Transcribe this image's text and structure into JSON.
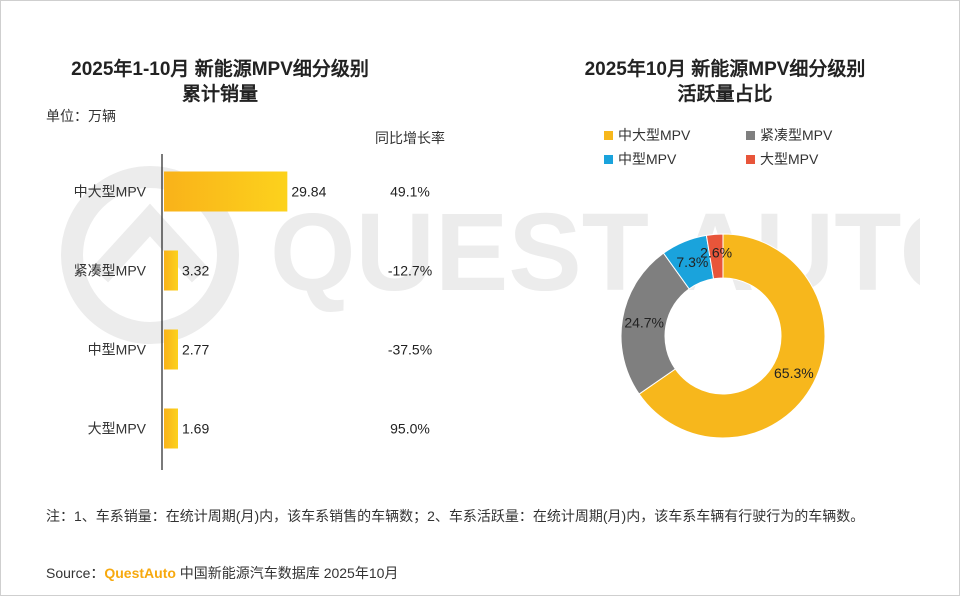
{
  "left_title_line1": "2025年1-10月 新能源MPV细分级别",
  "left_title_line2": "累计销量",
  "right_title_line1": "2025年10月 新能源MPV细分级别",
  "right_title_line2": "活跃量占比",
  "unit_label": "单位：万辆",
  "yoy_header": "同比增长率",
  "watermark_text": "QUEST AUTO",
  "note": "注：1、车系销量：在统计周期(月)内，该车系销售的车辆数；2、车系活跃量：在统计周期(月)内，该车系车辆有行驶行为的车辆数。",
  "source_prefix": "Source：",
  "source_brand": "QuestAuto",
  "source_suffix": " 中国新能源汽车数据库 2025年10月",
  "colors": {
    "bar_gold": "#f9c21a",
    "gold": "#f7b71c",
    "gray": "#7f7f7f",
    "blue": "#1aa3dc",
    "red": "#e8553a",
    "brand": "#f7a90e"
  },
  "chart_data": [
    {
      "type": "bar",
      "orientation": "horizontal",
      "categories": [
        "中大型MPV",
        "紧凑型MPV",
        "中型MPV",
        "大型MPV"
      ],
      "values": [
        29.84,
        3.32,
        2.77,
        1.69
      ],
      "value_labels": [
        "29.84",
        "3.32",
        "2.77",
        "1.69"
      ],
      "yoy_growth": [
        "49.1%",
        "-12.7%",
        "-37.5%",
        "95.0%"
      ],
      "unit": "万辆",
      "xlim": [
        0,
        30
      ]
    },
    {
      "type": "pie",
      "style": "donut",
      "legend_position": "top",
      "labels": [
        "中大型MPV",
        "紧凑型MPV",
        "中型MPV",
        "大型MPV"
      ],
      "legend_order": [
        "中大型MPV",
        "紧凑型MPV",
        "中型MPV",
        "大型MPV"
      ],
      "values": [
        65.3,
        24.7,
        7.3,
        2.6
      ],
      "value_labels": [
        "65.3%",
        "24.7%",
        "7.3%",
        "2.6%"
      ],
      "colors": [
        "#f7b71c",
        "#7f7f7f",
        "#1aa3dc",
        "#e8553a"
      ]
    }
  ]
}
